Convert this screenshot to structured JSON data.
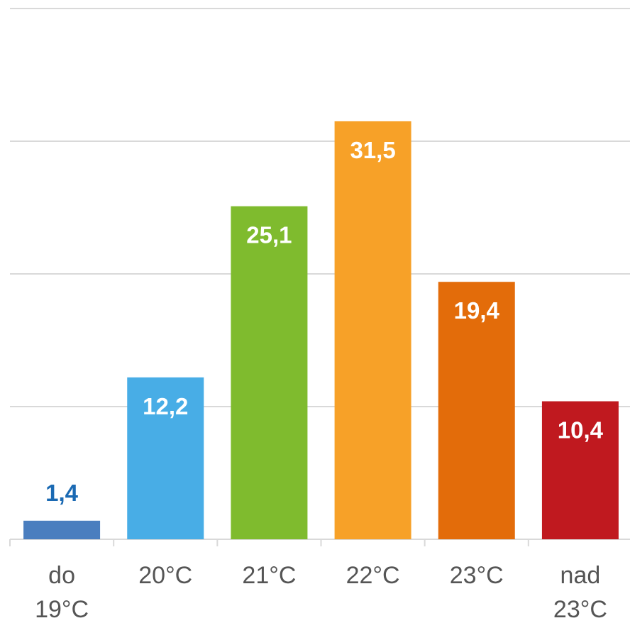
{
  "chart_data": {
    "type": "bar",
    "categories": [
      "do 19°C",
      "20°C",
      "21°C",
      "22°C",
      "23°C",
      "nad 23°C"
    ],
    "values": [
      1.4,
      12.2,
      25.1,
      31.5,
      19.4,
      10.4
    ],
    "value_labels": [
      "1,4",
      "12,2",
      "25,1",
      "31,5",
      "19,4",
      "10,4"
    ],
    "colors": [
      "#4a7ebf",
      "#48ade6",
      "#7fbb2e",
      "#f7a128",
      "#e36c0a",
      "#c0191f"
    ],
    "ylim": [
      0,
      40
    ],
    "yticks": [
      0,
      10,
      20,
      30,
      40
    ],
    "grid": true
  }
}
